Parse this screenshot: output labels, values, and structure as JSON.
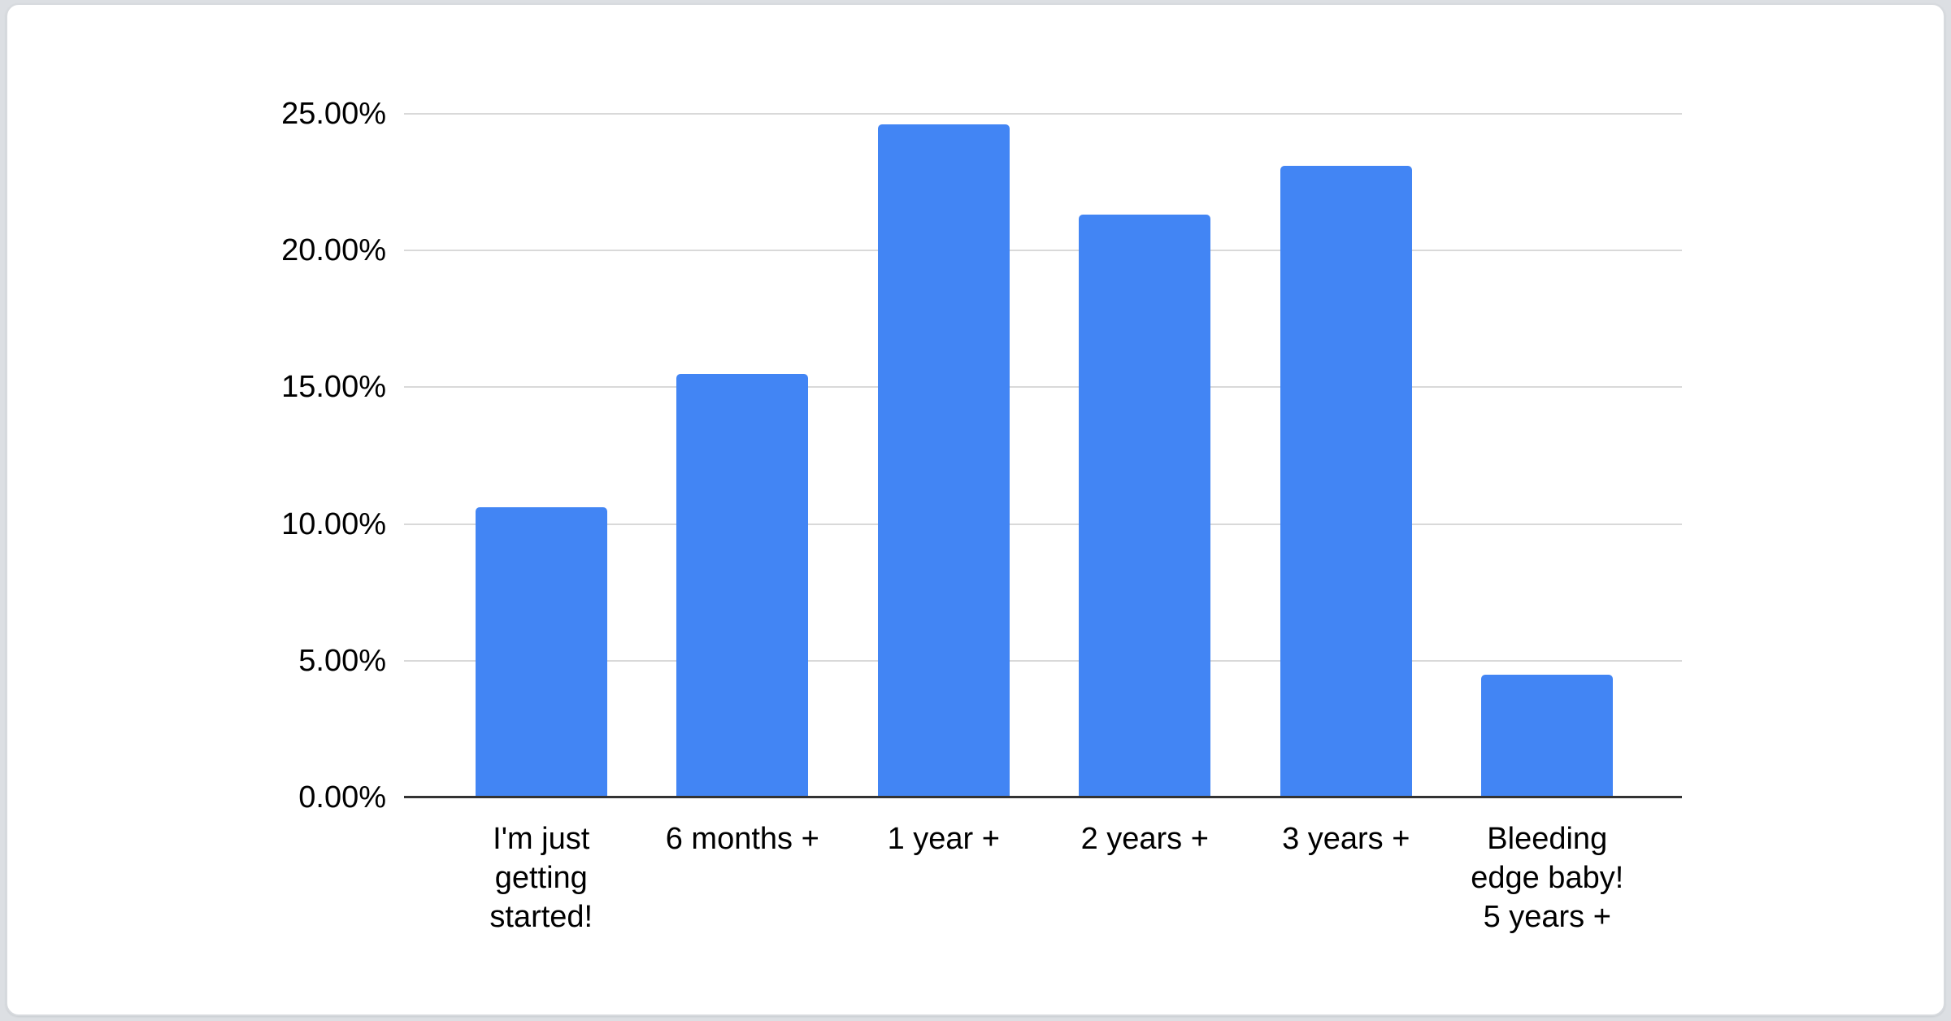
{
  "window": {
    "background_color": "#dcdfe3",
    "card_background_color": "#ffffff",
    "card_border_color": "#d7dade"
  },
  "chart_data": {
    "type": "bar",
    "categories": [
      "I'm just\ngetting\nstarted!",
      "6 months +",
      "1 year +",
      "2 years +",
      "3 years +",
      "Bleeding\nedge baby!\n5 years +"
    ],
    "values": [
      10.6,
      15.5,
      24.6,
      21.3,
      23.1,
      4.5
    ],
    "value_unit": "%",
    "y_ticks": [
      0,
      5,
      10,
      15,
      20,
      25
    ],
    "y_tick_labels": [
      "0.00%",
      "5.00%",
      "10.00%",
      "15.00%",
      "20.00%",
      "25.00%"
    ],
    "ylim": [
      0,
      25
    ],
    "grid": true,
    "legend": "none",
    "bar_color": "#4285f4",
    "gridline_color": "#d9d9d9",
    "axis_line_color": "#333333",
    "text_color": "#000000"
  }
}
